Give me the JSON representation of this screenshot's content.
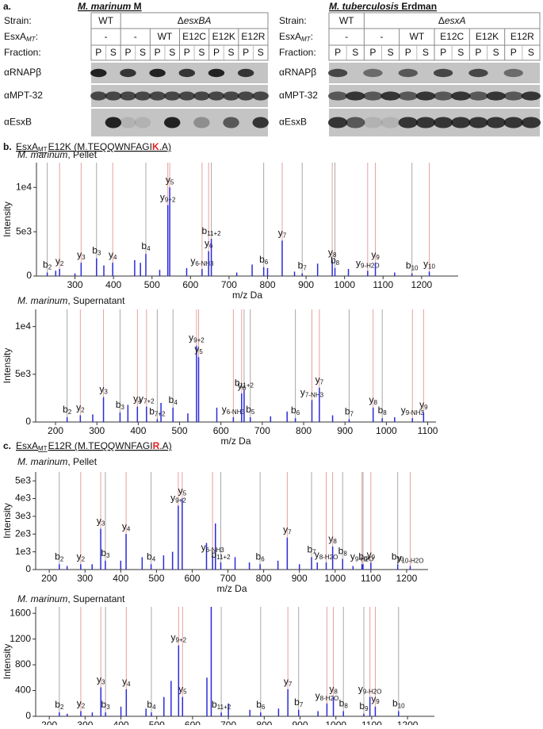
{
  "panel_a": {
    "label": "a.",
    "blots": [
      {
        "species": "M. marinum",
        "strain_name": " M",
        "row_labels": {
          "strain": "Strain:",
          "esxa": "EsxA",
          "esxa_sub": "MT",
          "esxa_colon": ":",
          "fraction": "Fraction:"
        },
        "strains": [
          {
            "prefix": "WT",
            "gene": ""
          },
          {
            "prefix": "Δ",
            "gene": "esxBA"
          }
        ],
        "complements": [
          "-",
          "-",
          "WT",
          "E12C",
          "E12K",
          "E12R"
        ],
        "fractions": [
          "P",
          "S",
          "P",
          "S",
          "P",
          "S",
          "P",
          "S",
          "P",
          "S",
          "P",
          "S"
        ],
        "antibodies": [
          "αRNAPβ",
          "αMPT-32",
          "αEsxB"
        ]
      },
      {
        "species": "M. tuberculosis",
        "strain_name": " Erdman",
        "row_labels": {
          "strain": "Strain:",
          "esxa": "EsxA",
          "esxa_sub": "MT",
          "esxa_colon": ":",
          "fraction": "Fraction:"
        },
        "strains": [
          {
            "prefix": "WT",
            "gene": ""
          },
          {
            "prefix": "Δ",
            "gene": "esxA"
          }
        ],
        "complements": [
          "-",
          "-",
          "WT",
          "E12C",
          "E12K",
          "E12R"
        ],
        "fractions": [
          "P",
          "S",
          "P",
          "S",
          "P",
          "S",
          "P",
          "S",
          "P",
          "S",
          "P",
          "S"
        ],
        "antibodies": [
          "αRNAPβ",
          "αMPT-32",
          "αEsxB"
        ]
      }
    ]
  },
  "panel_b": {
    "label": "b.",
    "protein": "EsxA",
    "protein_sub": "MT",
    "mutant": "E12K (M.TEQQWNFAGI",
    "residue": "K",
    "tail": ".A)"
  },
  "panel_c": {
    "label": "c.",
    "protein": "EsxA",
    "protein_sub": "MT",
    "mutant": "E12R (M.TEQQWNFAGI",
    "residue": "R",
    "tail": ".A)"
  },
  "chart_data": [
    {
      "type": "spectrum",
      "species": "M. marinum",
      "fraction": ", Pellet",
      "ylabel": "Intensity",
      "xlabel": "m/z Da",
      "xlim": [
        200,
        1295
      ],
      "ylim": [
        0,
        12800
      ],
      "xticks": [
        300,
        400,
        500,
        600,
        700,
        800,
        900,
        1000,
        1100,
        1200
      ],
      "yticks": [
        0,
        {
          "value": 5000,
          "label": "5e3"
        },
        {
          "value": 10000,
          "label": "1e4"
        }
      ],
      "peak_color": "#2b2bd9",
      "line_colors": {
        "y": "#e8a0a0",
        "b": "#a8a8a8"
      },
      "ions": [
        {
          "name": "b",
          "sub": "2",
          "mz": 228,
          "intensity": 400
        },
        {
          "name": "y",
          "sub": "2",
          "mz": 260,
          "intensity": 800
        },
        {
          "name": "y",
          "sub": "3",
          "mz": 316,
          "intensity": 1500
        },
        {
          "name": "b",
          "sub": "3",
          "mz": 356,
          "intensity": 2000
        },
        {
          "name": "y",
          "sub": "4",
          "mz": 398,
          "intensity": 1500
        },
        {
          "name": "b",
          "sub": "4",
          "mz": 484,
          "intensity": 2500
        },
        {
          "name": "y",
          "sub": "9+2",
          "mz": 541,
          "intensity": 8000
        },
        {
          "name": "y",
          "sub": "5",
          "mz": 546,
          "intensity": 10000
        },
        {
          "name": "y",
          "sub": "6-NH3",
          "mz": 630,
          "intensity": 800
        },
        {
          "name": "y",
          "sub": "6",
          "mz": 647,
          "intensity": 2800
        },
        {
          "name": "b",
          "sub": "11+2",
          "mz": 654,
          "intensity": 4200
        },
        {
          "name": "b",
          "sub": "6",
          "mz": 790,
          "intensity": 1000
        },
        {
          "name": "y",
          "sub": "7",
          "mz": 838,
          "intensity": 4000
        },
        {
          "name": "b",
          "sub": "7",
          "mz": 890,
          "intensity": 300
        },
        {
          "name": "y",
          "sub": "8",
          "mz": 968,
          "intensity": 1800
        },
        {
          "name": "b",
          "sub": "8",
          "mz": 975,
          "intensity": 900
        },
        {
          "name": "y",
          "sub": "9-H2O",
          "mz": 1060,
          "intensity": 600
        },
        {
          "name": "y",
          "sub": "9",
          "mz": 1080,
          "intensity": 1500
        },
        {
          "name": "b",
          "sub": "10",
          "mz": 1175,
          "intensity": 300
        },
        {
          "name": "y",
          "sub": "10",
          "mz": 1220,
          "intensity": 500
        }
      ],
      "peaks": {
        "x": [
          250,
          300,
          375,
          455,
          470,
          520,
          590,
          720,
          760,
          800,
          870,
          930,
          1010,
          1130
        ],
        "y": [
          600,
          300,
          1200,
          1800,
          1500,
          700,
          900,
          400,
          1300,
          900,
          500,
          1400,
          800,
          400
        ]
      }
    },
    {
      "type": "spectrum",
      "species": "M. marinum",
      "fraction": ", Supernatant",
      "ylabel": "Intensity",
      "xlabel": "m/z Da",
      "xlim": [
        152,
        1120
      ],
      "ylim": [
        0,
        11800
      ],
      "xticks": [
        200,
        300,
        400,
        500,
        600,
        700,
        800,
        900,
        1000,
        1100
      ],
      "yticks": [
        0,
        {
          "value": 5000,
          "label": "5e3"
        },
        {
          "value": 10000,
          "label": "1e4"
        }
      ],
      "peak_color": "#2b2bd9",
      "line_colors": {
        "y": "#e8a0a0",
        "b": "#a8a8a8"
      },
      "ions": [
        {
          "name": "b",
          "sub": "2",
          "mz": 228,
          "intensity": 500
        },
        {
          "name": "y",
          "sub": "2",
          "mz": 260,
          "intensity": 700
        },
        {
          "name": "y",
          "sub": "3",
          "mz": 316,
          "intensity": 2600
        },
        {
          "name": "b",
          "sub": "3",
          "mz": 356,
          "intensity": 1000
        },
        {
          "name": "y",
          "sub": "4",
          "mz": 398,
          "intensity": 1600
        },
        {
          "name": "y",
          "sub": "7+2",
          "mz": 420,
          "intensity": 1600
        },
        {
          "name": "b",
          "sub": "7+2",
          "mz": 446,
          "intensity": 300
        },
        {
          "name": "b",
          "sub": "4",
          "mz": 484,
          "intensity": 1500
        },
        {
          "name": "y",
          "sub": "9+2",
          "mz": 541,
          "intensity": 8000
        },
        {
          "name": "y",
          "sub": "5",
          "mz": 546,
          "intensity": 6800
        },
        {
          "name": "y",
          "sub": "6-NH3",
          "mz": 630,
          "intensity": 500
        },
        {
          "name": "y",
          "sub": "6",
          "mz": 650,
          "intensity": 3000
        },
        {
          "name": "b",
          "sub": "11+2",
          "mz": 656,
          "intensity": 3300
        },
        {
          "name": "b",
          "sub": "5",
          "mz": 671,
          "intensity": 500
        },
        {
          "name": "b",
          "sub": "6",
          "mz": 780,
          "intensity": 400
        },
        {
          "name": "y",
          "sub": "7-NH3",
          "mz": 820,
          "intensity": 2300
        },
        {
          "name": "y",
          "sub": "7",
          "mz": 838,
          "intensity": 3600
        },
        {
          "name": "b",
          "sub": "7",
          "mz": 910,
          "intensity": 300
        },
        {
          "name": "y",
          "sub": "8",
          "mz": 968,
          "intensity": 1500
        },
        {
          "name": "b",
          "sub": "8",
          "mz": 990,
          "intensity": 400
        },
        {
          "name": "y",
          "sub": "9-NH3",
          "mz": 1063,
          "intensity": 400
        },
        {
          "name": "y",
          "sub": "9",
          "mz": 1090,
          "intensity": 1000
        }
      ],
      "peaks": {
        "x": [
          290,
          375,
          455,
          520,
          590,
          720,
          760,
          870,
          1020
        ],
        "y": [
          800,
          1800,
          2000,
          900,
          1500,
          600,
          1100,
          700,
          500
        ]
      }
    },
    {
      "type": "spectrum",
      "species": "M. marinum",
      "fraction": ", Pellet",
      "ylabel": "Intensity",
      "xlabel": "m/z Da",
      "xlim": [
        162,
        1260
      ],
      "ylim": [
        0,
        5500
      ],
      "xticks": [
        200,
        300,
        400,
        500,
        600,
        700,
        800,
        900,
        1000,
        1100,
        1200
      ],
      "yticks": [
        0,
        {
          "value": 1000,
          "label": "1e3"
        },
        {
          "value": 2000,
          "label": "2e3"
        },
        {
          "value": 3000,
          "label": "3e3"
        },
        {
          "value": 4000,
          "label": "4e3"
        },
        {
          "value": 5000,
          "label": "5e3"
        }
      ],
      "peak_color": "#2b2bd9",
      "line_colors": {
        "y": "#e8a0a0",
        "b": "#a8a8a8"
      },
      "ions": [
        {
          "name": "b",
          "sub": "2",
          "mz": 228,
          "intensity": 300
        },
        {
          "name": "y",
          "sub": "2",
          "mz": 288,
          "intensity": 300
        },
        {
          "name": "y",
          "sub": "3",
          "mz": 344,
          "intensity": 2300
        },
        {
          "name": "b",
          "sub": "3",
          "mz": 357,
          "intensity": 500
        },
        {
          "name": "y",
          "sub": "4",
          "mz": 415,
          "intensity": 2000
        },
        {
          "name": "b",
          "sub": "4",
          "mz": 485,
          "intensity": 300
        },
        {
          "name": "y",
          "sub": "9+2",
          "mz": 561,
          "intensity": 3600
        },
        {
          "name": "y",
          "sub": "5",
          "mz": 572,
          "intensity": 4000
        },
        {
          "name": "y",
          "sub": "6-NH3",
          "mz": 657,
          "intensity": 800
        },
        {
          "name": "b",
          "sub": "11+2",
          "mz": 680,
          "intensity": 400
        },
        {
          "name": "b",
          "sub": "6",
          "mz": 790,
          "intensity": 300
        },
        {
          "name": "y",
          "sub": "7",
          "mz": 866,
          "intensity": 1800
        },
        {
          "name": "b",
          "sub": "7",
          "mz": 934,
          "intensity": 700
        },
        {
          "name": "y",
          "sub": "8-H2O",
          "mz": 975,
          "intensity": 400
        },
        {
          "name": "y",
          "sub": "8",
          "mz": 993,
          "intensity": 1300
        },
        {
          "name": "b",
          "sub": "8",
          "mz": 1021,
          "intensity": 600
        },
        {
          "name": "y",
          "sub": "9-H2O",
          "mz": 1075,
          "intensity": 300
        },
        {
          "name": "b",
          "sub": "9",
          "mz": 1078,
          "intensity": 300
        },
        {
          "name": "y",
          "sub": "9",
          "mz": 1100,
          "intensity": 400
        },
        {
          "name": "b",
          "sub": "10",
          "mz": 1175,
          "intensity": 300
        },
        {
          "name": "y",
          "sub": "10-H2O",
          "mz": 1210,
          "intensity": 200
        }
      ],
      "peaks": {
        "x": [
          250,
          320,
          400,
          460,
          520,
          545,
          640,
          665,
          720,
          760,
          840,
          900,
          950,
          1050
        ],
        "y": [
          200,
          300,
          500,
          700,
          800,
          1000,
          1500,
          2600,
          700,
          400,
          500,
          300,
          400,
          200
        ]
      }
    },
    {
      "type": "spectrum",
      "species": "M. marinum",
      "fraction": ", Supernatant",
      "ylabel": "Intensity",
      "xlabel": "m/z Da",
      "xlim": [
        162,
        1275
      ],
      "ylim": [
        0,
        1700
      ],
      "xticks": [
        200,
        300,
        400,
        500,
        600,
        700,
        800,
        900,
        1000,
        1100,
        1200
      ],
      "yticks": [
        0,
        400,
        800,
        1200,
        1600
      ],
      "peak_color": "#2b2bd9",
      "line_colors": {
        "y": "#e8a0a0",
        "b": "#a8a8a8"
      },
      "ions": [
        {
          "name": "b",
          "sub": "2",
          "mz": 228,
          "intensity": 60
        },
        {
          "name": "y",
          "sub": "2",
          "mz": 288,
          "intensity": 80
        },
        {
          "name": "y",
          "sub": "3",
          "mz": 344,
          "intensity": 450
        },
        {
          "name": "b",
          "sub": "3",
          "mz": 357,
          "intensity": 60
        },
        {
          "name": "y",
          "sub": "4",
          "mz": 415,
          "intensity": 420
        },
        {
          "name": "b",
          "sub": "4",
          "mz": 485,
          "intensity": 60
        },
        {
          "name": "y",
          "sub": "9+2",
          "mz": 561,
          "intensity": 1100
        },
        {
          "name": "y",
          "sub": "5",
          "mz": 572,
          "intensity": 300
        },
        {
          "name": "b",
          "sub": "11+2",
          "mz": 680,
          "intensity": 60
        },
        {
          "name": "b",
          "sub": "6",
          "mz": 790,
          "intensity": 60
        },
        {
          "name": "y",
          "sub": "7",
          "mz": 866,
          "intensity": 420
        },
        {
          "name": "b",
          "sub": "7",
          "mz": 896,
          "intensity": 100
        },
        {
          "name": "y",
          "sub": "8-H2O",
          "mz": 975,
          "intensity": 200
        },
        {
          "name": "y",
          "sub": "8",
          "mz": 993,
          "intensity": 300
        },
        {
          "name": "b",
          "sub": "8",
          "mz": 1021,
          "intensity": 80
        },
        {
          "name": "b",
          "sub": "9",
          "mz": 1078,
          "intensity": 40
        },
        {
          "name": "y",
          "sub": "9-H2O",
          "mz": 1095,
          "intensity": 300
        },
        {
          "name": "y",
          "sub": "9",
          "mz": 1110,
          "intensity": 150
        },
        {
          "name": "b",
          "sub": "10",
          "mz": 1175,
          "intensity": 80
        }
      ],
      "peaks": {
        "x": [
          250,
          320,
          400,
          470,
          520,
          540,
          640,
          652,
          700,
          760,
          840,
          950
        ],
        "y": [
          40,
          60,
          150,
          120,
          300,
          550,
          600,
          1700,
          200,
          100,
          120,
          80
        ]
      }
    }
  ]
}
